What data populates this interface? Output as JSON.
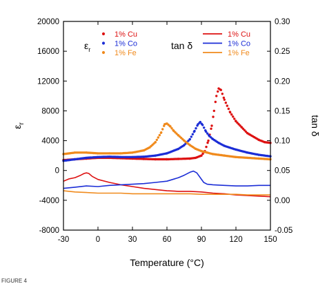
{
  "caption": "FIGURE 4",
  "chart_data": {
    "type": "scatter",
    "xlabel": "Temperature (°C)",
    "ylabel_left": "ε_r",
    "ylabel_right": "tan δ",
    "xlim": [
      -30,
      150
    ],
    "ylim_left": [
      -8000,
      20000
    ],
    "ylim_right": [
      -0.05,
      0.3
    ],
    "xticks": [
      "-30",
      "0",
      "30",
      "60",
      "90",
      "120",
      "150"
    ],
    "yticks_left": [
      "-8000",
      "-4000",
      "0",
      "4000",
      "8000",
      "12000",
      "16000",
      "20000"
    ],
    "yticks_right": [
      "-0.05",
      "0.00",
      "0.05",
      "0.10",
      "0.15",
      "0.20",
      "0.25",
      "0.30"
    ],
    "legend_left_title": "ε_r",
    "legend_right_title": "tan δ",
    "grid": false,
    "colors": {
      "Cu": "#dd1111",
      "Co": "#1b2dd6",
      "Fe": "#f08a1c"
    },
    "series": [
      {
        "name": "1% Cu",
        "quantity": "epsilon_r",
        "axis": "left",
        "style": "points",
        "color": "#dd1111",
        "x": [
          -30,
          -20,
          -10,
          0,
          10,
          20,
          30,
          40,
          50,
          60,
          70,
          80,
          85,
          90,
          93,
          96,
          99,
          101,
          103,
          105,
          107,
          110,
          115,
          120,
          125,
          130,
          140,
          145,
          150
        ],
        "y": [
          1400,
          1500,
          1600,
          1700,
          1700,
          1650,
          1600,
          1550,
          1500,
          1500,
          1550,
          1600,
          1700,
          2000,
          2600,
          4000,
          6000,
          8000,
          10000,
          11000,
          10800,
          9500,
          7800,
          6600,
          5800,
          5000,
          4100,
          3800,
          3700
        ]
      },
      {
        "name": "1% Co",
        "quantity": "epsilon_r",
        "axis": "left",
        "style": "points",
        "color": "#1b2dd6",
        "x": [
          -30,
          -20,
          -10,
          0,
          10,
          20,
          30,
          40,
          50,
          60,
          70,
          75,
          80,
          84,
          87,
          89,
          91,
          94,
          97,
          100,
          105,
          110,
          120,
          130,
          140,
          150
        ],
        "y": [
          1300,
          1500,
          1700,
          1800,
          1850,
          1800,
          1800,
          1850,
          2000,
          2300,
          2900,
          3400,
          4200,
          5300,
          6200,
          6500,
          6100,
          5200,
          4600,
          4200,
          3700,
          3300,
          2800,
          2400,
          2100,
          1900
        ]
      },
      {
        "name": "1% Fe",
        "quantity": "epsilon_r",
        "axis": "left",
        "style": "points",
        "color": "#f08a1c",
        "x": [
          -30,
          -20,
          -10,
          0,
          10,
          20,
          30,
          40,
          45,
          50,
          55,
          58,
          60,
          63,
          66,
          70,
          75,
          80,
          85,
          90,
          95,
          100,
          110,
          120,
          130,
          140,
          150
        ],
        "y": [
          2200,
          2400,
          2400,
          2300,
          2300,
          2300,
          2400,
          2700,
          3100,
          3800,
          5100,
          6200,
          6300,
          5900,
          5300,
          4700,
          4000,
          3400,
          2900,
          2600,
          2400,
          2200,
          2000,
          1800,
          1700,
          1600,
          1500
        ]
      },
      {
        "name": "1% Cu",
        "quantity": "tan_delta",
        "axis": "right",
        "style": "line",
        "color": "#dd1111",
        "x": [
          -30,
          -25,
          -20,
          -15,
          -12,
          -10,
          -8,
          -5,
          0,
          10,
          20,
          30,
          40,
          50,
          60,
          70,
          80,
          90,
          100,
          110,
          120,
          130,
          140,
          150
        ],
        "y": [
          0.032,
          0.036,
          0.038,
          0.042,
          0.045,
          0.046,
          0.045,
          0.04,
          0.035,
          0.03,
          0.026,
          0.023,
          0.02,
          0.018,
          0.016,
          0.015,
          0.015,
          0.014,
          0.012,
          0.011,
          0.009,
          0.008,
          0.007,
          0.006
        ]
      },
      {
        "name": "1% Co",
        "quantity": "tan_delta",
        "axis": "right",
        "style": "line",
        "color": "#1b2dd6",
        "x": [
          -30,
          -20,
          -10,
          0,
          10,
          20,
          30,
          40,
          50,
          60,
          65,
          70,
          75,
          80,
          83,
          86,
          89,
          92,
          95,
          100,
          110,
          120,
          130,
          140,
          150
        ],
        "y": [
          0.02,
          0.022,
          0.024,
          0.023,
          0.025,
          0.026,
          0.027,
          0.028,
          0.03,
          0.032,
          0.035,
          0.038,
          0.042,
          0.047,
          0.049,
          0.046,
          0.038,
          0.03,
          0.027,
          0.026,
          0.025,
          0.024,
          0.024,
          0.025,
          0.025
        ]
      },
      {
        "name": "1% Fe",
        "quantity": "tan_delta",
        "axis": "right",
        "style": "line",
        "color": "#f08a1c",
        "x": [
          -30,
          -20,
          -10,
          0,
          10,
          20,
          30,
          40,
          50,
          60,
          70,
          80,
          90,
          100,
          110,
          120,
          130,
          140,
          150
        ],
        "y": [
          0.016,
          0.014,
          0.013,
          0.012,
          0.012,
          0.012,
          0.011,
          0.011,
          0.011,
          0.011,
          0.011,
          0.011,
          0.01,
          0.01,
          0.01,
          0.01,
          0.009,
          0.009,
          0.009
        ]
      }
    ],
    "legend_epsilon": [
      {
        "label": "1% Cu",
        "color": "#dd1111"
      },
      {
        "label": "1% Co",
        "color": "#1b2dd6"
      },
      {
        "label": "1% Fe",
        "color": "#f08a1c"
      }
    ],
    "legend_tan": [
      {
        "label": "1% Cu",
        "color": "#dd1111"
      },
      {
        "label": "1% Co",
        "color": "#1b2dd6"
      },
      {
        "label": "1% Fe",
        "color": "#f08a1c"
      }
    ]
  }
}
